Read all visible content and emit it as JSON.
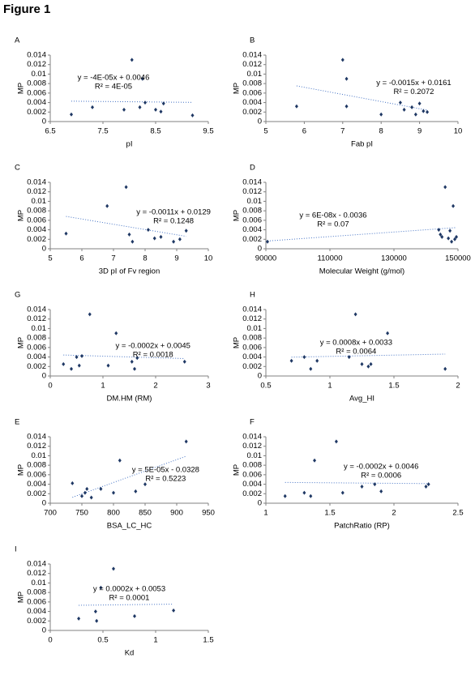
{
  "figure_title": "Figure 1",
  "chart_data": [
    {
      "type": "scatter",
      "panel": "A",
      "xlabel": "pI",
      "ylabel": "MP",
      "equation": "y = -4E-05x + 0.0046",
      "r2": "R² = 4E-05",
      "xlim": [
        6.5,
        9.5
      ],
      "xticks": [
        6.5,
        7.5,
        8.5,
        9.5
      ],
      "ylim": [
        0,
        0.014
      ],
      "yticks": [
        0,
        0.002,
        0.004,
        0.006,
        0.008,
        0.01,
        0.012,
        0.014
      ],
      "color": "#1f3864",
      "x": [
        6.9,
        7.3,
        7.9,
        8.05,
        8.2,
        8.25,
        8.3,
        8.5,
        8.6,
        8.65,
        9.2
      ],
      "y": [
        0.0015,
        0.003,
        0.0025,
        0.013,
        0.003,
        0.009,
        0.004,
        0.0025,
        0.0021,
        0.0038,
        0.0013
      ]
    },
    {
      "type": "scatter",
      "panel": "B",
      "xlabel": "Fab pI",
      "ylabel": "MP",
      "equation": "y = -0.0015x + 0.0161",
      "r2": "R² = 0.2072",
      "xlim": [
        5,
        10
      ],
      "xticks": [
        5,
        6,
        7,
        8,
        9,
        10
      ],
      "ylim": [
        0,
        0.014
      ],
      "yticks": [
        0,
        0.002,
        0.004,
        0.006,
        0.008,
        0.01,
        0.012,
        0.014
      ],
      "color": "#1f3864",
      "x": [
        5.8,
        7.0,
        7.1,
        7.1,
        8.0,
        8.5,
        8.6,
        8.8,
        8.9,
        9.0,
        9.1,
        9.2
      ],
      "y": [
        0.0032,
        0.013,
        0.009,
        0.0032,
        0.0015,
        0.004,
        0.0025,
        0.003,
        0.0015,
        0.0038,
        0.0022,
        0.002
      ]
    },
    {
      "type": "scatter",
      "panel": "C",
      "xlabel": "3D pI of Fv region",
      "ylabel": "MP",
      "equation": "y = -0.0011x + 0.0129",
      "r2": "R² = 0.1248",
      "xlim": [
        5,
        10
      ],
      "xticks": [
        5,
        6,
        7,
        8,
        9,
        10
      ],
      "ylim": [
        0,
        0.014
      ],
      "yticks": [
        0,
        0.002,
        0.004,
        0.006,
        0.008,
        0.01,
        0.012,
        0.014
      ],
      "color": "#1f3864",
      "x": [
        5.5,
        6.8,
        7.4,
        7.5,
        7.6,
        8.1,
        8.3,
        8.5,
        8.9,
        9.1,
        9.3
      ],
      "y": [
        0.0032,
        0.009,
        0.013,
        0.003,
        0.0015,
        0.004,
        0.0022,
        0.0025,
        0.0015,
        0.002,
        0.0038
      ]
    },
    {
      "type": "scatter",
      "panel": "D",
      "xlabel": "Molecular Weight (g/mol)",
      "ylabel": "MP",
      "equation": "y = 6E-08x - 0.0036",
      "r2": "R² = 0.07",
      "xlim": [
        90000,
        150000
      ],
      "xticks": [
        90000,
        110000,
        130000,
        150000
      ],
      "ylim": [
        0,
        0.014
      ],
      "yticks": [
        0,
        0.002,
        0.004,
        0.006,
        0.008,
        0.01,
        0.012,
        0.014
      ],
      "color": "#1f3864",
      "x": [
        90500,
        144000,
        144500,
        145000,
        146000,
        147000,
        147500,
        148000,
        148500,
        149000,
        149500
      ],
      "y": [
        0.0015,
        0.004,
        0.003,
        0.0025,
        0.013,
        0.0022,
        0.0038,
        0.0015,
        0.009,
        0.002,
        0.0025
      ]
    },
    {
      "type": "scatter",
      "panel": "G",
      "xlabel": "DM.HM (RM)",
      "ylabel": "MP",
      "equation": "y = -0.0002x + 0.0045",
      "r2": "R² = 0.0018",
      "xlim": [
        0,
        3
      ],
      "xticks": [
        0,
        1,
        2,
        3
      ],
      "ylim": [
        0,
        0.014
      ],
      "yticks": [
        0,
        0.002,
        0.004,
        0.006,
        0.008,
        0.01,
        0.012,
        0.014
      ],
      "color": "#1f3864",
      "x": [
        0.25,
        0.4,
        0.5,
        0.55,
        0.6,
        0.75,
        1.1,
        1.25,
        1.55,
        1.6,
        1.65,
        2.55
      ],
      "y": [
        0.0025,
        0.0015,
        0.004,
        0.0022,
        0.0042,
        0.013,
        0.0022,
        0.009,
        0.003,
        0.0015,
        0.0038,
        0.003
      ]
    },
    {
      "type": "scatter",
      "panel": "H",
      "xlabel": "Avg_HI",
      "ylabel": "MP",
      "equation": "y = 0.0008x + 0.0033",
      "r2": "R² = 0.0064",
      "xlim": [
        0.5,
        2
      ],
      "xticks": [
        0.5,
        1,
        1.5,
        2
      ],
      "ylim": [
        0,
        0.014
      ],
      "yticks": [
        0,
        0.002,
        0.004,
        0.006,
        0.008,
        0.01,
        0.012,
        0.014
      ],
      "color": "#1f3864",
      "x": [
        0.7,
        0.8,
        0.85,
        0.9,
        1.15,
        1.2,
        1.25,
        1.3,
        1.32,
        1.45,
        1.9
      ],
      "y": [
        0.0032,
        0.004,
        0.0015,
        0.0032,
        0.004,
        0.013,
        0.0025,
        0.002,
        0.0025,
        0.009,
        0.0015
      ]
    },
    {
      "type": "scatter",
      "panel": "E",
      "xlabel": "BSA_LC_HC",
      "ylabel": "MP",
      "equation": "y = 5E-05x - 0.0328",
      "r2": "R² = 0.5223",
      "xlim": [
        700,
        950
      ],
      "xticks": [
        700,
        750,
        800,
        850,
        900,
        950
      ],
      "ylim": [
        0,
        0.014
      ],
      "yticks": [
        0,
        0.002,
        0.004,
        0.006,
        0.008,
        0.01,
        0.012,
        0.014
      ],
      "color": "#1f3864",
      "x": [
        735,
        750,
        755,
        758,
        765,
        780,
        800,
        810,
        835,
        850,
        915
      ],
      "y": [
        0.0042,
        0.0015,
        0.0022,
        0.003,
        0.0012,
        0.003,
        0.0022,
        0.009,
        0.0025,
        0.004,
        0.013
      ]
    },
    {
      "type": "scatter",
      "panel": "F",
      "xlabel": "PatchRatio (RP)",
      "ylabel": "MP",
      "equation": "y = -0.0002x + 0.0046",
      "r2": "R² = 0.0006",
      "xlim": [
        1,
        2.5
      ],
      "xticks": [
        1,
        1.5,
        2,
        2.5
      ],
      "ylim": [
        0,
        0.014
      ],
      "yticks": [
        0,
        0.002,
        0.004,
        0.006,
        0.008,
        0.01,
        0.012,
        0.014
      ],
      "color": "#1f3864",
      "x": [
        1.15,
        1.3,
        1.35,
        1.38,
        1.55,
        1.6,
        1.75,
        1.85,
        1.9,
        2.25,
        2.27
      ],
      "y": [
        0.0015,
        0.0022,
        0.0015,
        0.009,
        0.013,
        0.0022,
        0.0035,
        0.004,
        0.0025,
        0.0035,
        0.004
      ]
    },
    {
      "type": "scatter",
      "panel": "I",
      "xlabel": "Kd",
      "ylabel": "MP",
      "equation": "y = 0.0002x + 0.0053",
      "r2": "R² = 0.0001",
      "xlim": [
        0,
        1.5
      ],
      "xticks": [
        0,
        0.5,
        1,
        1.5
      ],
      "ylim": [
        0,
        0.014
      ],
      "yticks": [
        0,
        0.002,
        0.004,
        0.006,
        0.008,
        0.01,
        0.012,
        0.014
      ],
      "color": "#1f3864",
      "x": [
        0.27,
        0.43,
        0.44,
        0.48,
        0.6,
        0.8,
        1.17
      ],
      "y": [
        0.0025,
        0.004,
        0.002,
        0.009,
        0.013,
        0.003,
        0.0042
      ]
    }
  ]
}
